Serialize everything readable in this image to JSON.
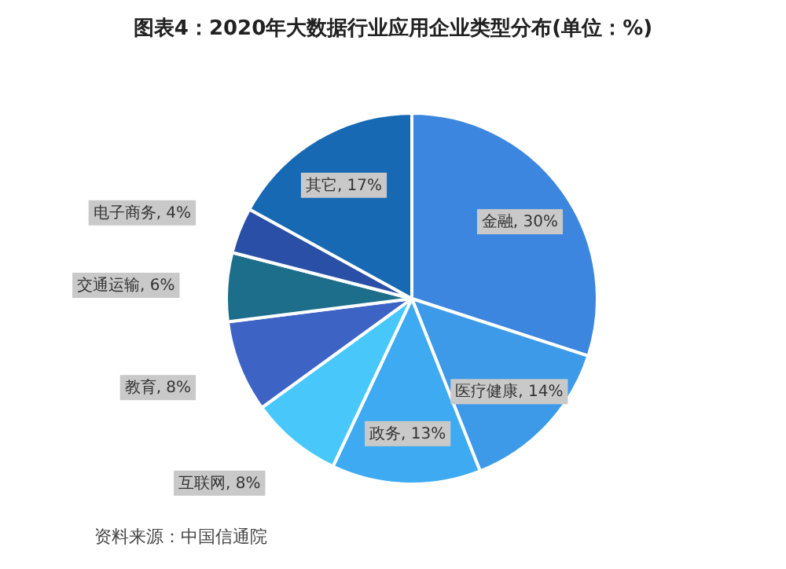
{
  "chart_data": {
    "type": "pie",
    "title": "图表4：2020年大数据行业应用企业类型分布(单位：%)",
    "categories": [
      "金融",
      "医疗健康",
      "政务",
      "互联网",
      "教育",
      "交通运输",
      "电子商务",
      "其它"
    ],
    "values": [
      30,
      14,
      13,
      8,
      8,
      6,
      4,
      17
    ],
    "colors": [
      "#3c86e0",
      "#3c9ae8",
      "#3eaaf2",
      "#48c8fa",
      "#3d63c5",
      "#1d6e8a",
      "#2a4fa6",
      "#1769b3"
    ],
    "value_labels": [
      ", 30%",
      ", 14%",
      ", 13%",
      ", 8%",
      ", 8%",
      ", 6%",
      ", 4%",
      ", 17%"
    ],
    "annotations": [
      "资料来源：中国信通院"
    ]
  }
}
